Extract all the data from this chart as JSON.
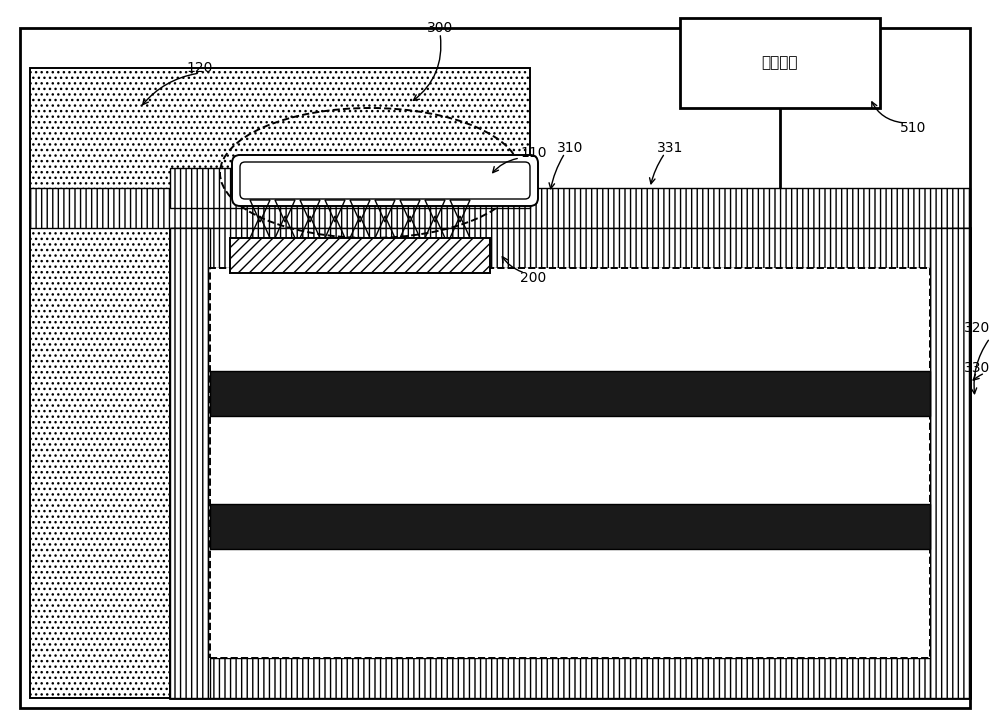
{
  "bg_color": "#ffffff",
  "label_300": "300",
  "label_110": "110",
  "label_120": "120",
  "label_200": "200",
  "label_310": "310",
  "label_320": "320",
  "label_330": "330",
  "label_331": "331",
  "label_510": "510",
  "label_chip": "驱动芯片",
  "figsize": [
    10.0,
    7.28
  ],
  "dpi": 100,
  "xlim": [
    0,
    100
  ],
  "ylim": [
    0,
    72.8
  ]
}
